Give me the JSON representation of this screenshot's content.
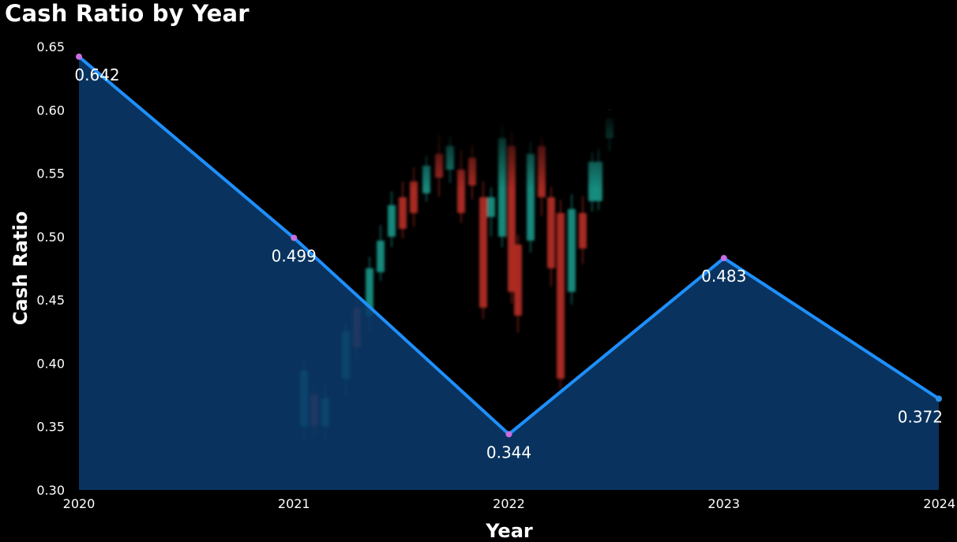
{
  "chart_data": {
    "type": "area",
    "title": "Cash Ratio by Year",
    "xlabel": "Year",
    "ylabel": "Cash Ratio",
    "categories": [
      "2020",
      "2021",
      "2022",
      "2023",
      "2024"
    ],
    "values": [
      0.642,
      0.499,
      0.344,
      0.483,
      0.372
    ],
    "data_labels": [
      "0.642",
      "0.499",
      "0.344",
      "0.483",
      "0.372"
    ],
    "y_ticks": [
      "0.30",
      "0.35",
      "0.40",
      "0.45",
      "0.50",
      "0.55",
      "0.60",
      "0.65"
    ],
    "ylim": [
      0.3,
      0.65
    ],
    "grid": false,
    "legend": "none",
    "colors": {
      "background": "#000000",
      "line": "#1e90ff",
      "area_fill": "#0a3a6b",
      "markers": [
        "#c86ee0",
        "#c86ee0",
        "#c86ee0",
        "#c86ee0",
        "#2a8ee6"
      ],
      "text": "#ffffff",
      "candle_up": "#1fb6a6",
      "candle_down": "#e0382e"
    },
    "background_image": "candlestick-chart-photo"
  }
}
